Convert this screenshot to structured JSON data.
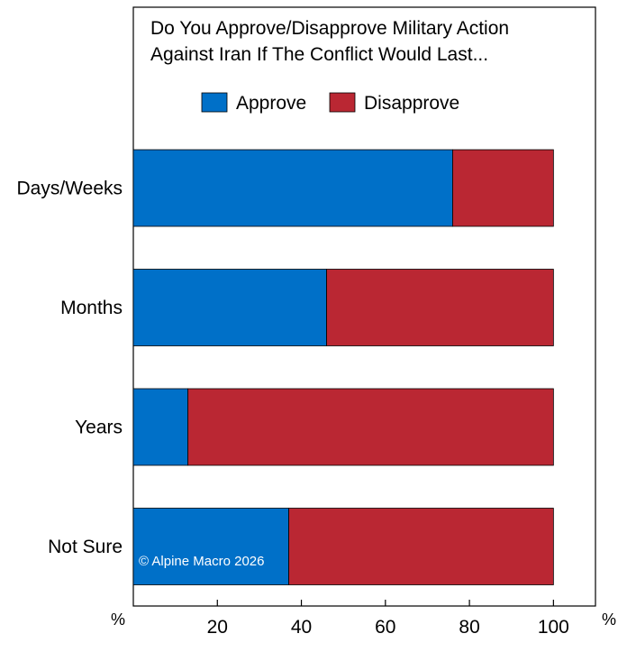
{
  "chart_data": {
    "type": "bar",
    "stacked": true,
    "orientation": "horizontal",
    "title_lines": [
      "Do You Approve/Disapprove Military Action",
      "Against Iran If The Conflict Would Last..."
    ],
    "categories": [
      "Days/Weeks",
      "Months",
      "Years",
      "Not Sure"
    ],
    "series": [
      {
        "name": "Approve",
        "values": [
          76,
          46,
          13,
          37
        ],
        "color": "#0070C8"
      },
      {
        "name": "Disapprove",
        "values": [
          24,
          54,
          87,
          63
        ],
        "color": "#BA2733"
      }
    ],
    "x_ticks": [
      20,
      40,
      60,
      80,
      100
    ],
    "x_unit_left": "%",
    "x_unit_right": "%",
    "xlim": [
      0,
      110
    ],
    "legend_position": "top-center",
    "annotation": "© Alpine Macro 2026"
  }
}
